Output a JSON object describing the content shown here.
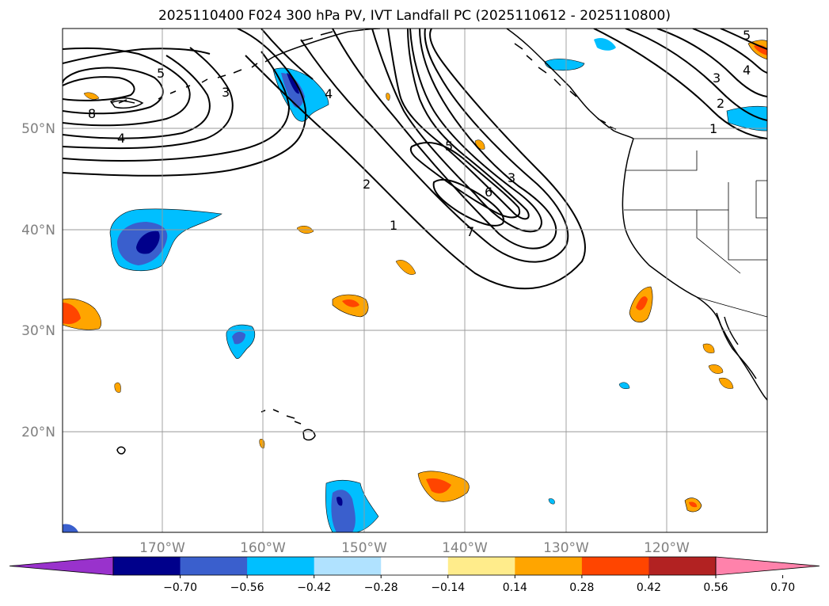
{
  "title": "2025110400 F024 300 hPa PV, IVT Landfall PC (2025110612 - 2025110800)",
  "lat_labels": [
    "50°N",
    "40°N",
    "30°N",
    "20°N"
  ],
  "lon_labels": [
    "170°W",
    "160°W",
    "150°W",
    "140°W",
    "130°W",
    "120°W"
  ],
  "colorbar": {
    "colors": [
      "#9932cc",
      "#00008b",
      "#3a5fcd",
      "#00bfff",
      "#b0e2ff",
      "#ffffff",
      "#ffec8b",
      "#ffa500",
      "#ff4500",
      "#b22222",
      "#ff82ab"
    ],
    "tick_labels": [
      "−0.70",
      "−0.56",
      "−0.42",
      "−0.28",
      "−0.14",
      "0.14",
      "0.28",
      "0.42",
      "0.56",
      "0.70"
    ]
  },
  "contour_labels": [
    "5",
    "3",
    "4",
    "6",
    "1",
    "2",
    "7",
    "8"
  ],
  "palette": {
    "neg_strong": "#00008b",
    "neg_mid": "#3a5fcd",
    "neg_light": "#00bfff",
    "pos_light": "#ffa500",
    "pos_strong": "#ff4500"
  }
}
